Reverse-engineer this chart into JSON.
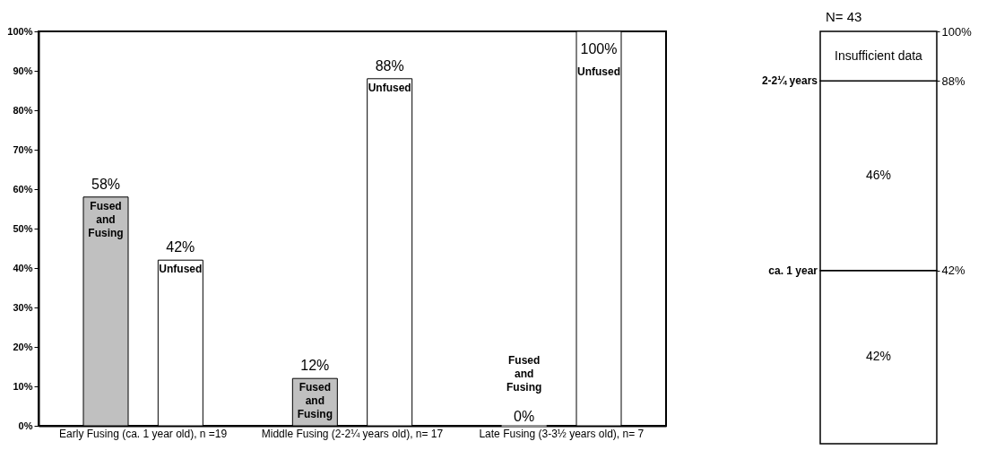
{
  "chart_data": [
    {
      "type": "bar",
      "categories": [
        "Early Fusing (ca. 1 year old), n =19",
        "Middle Fusing (2-2¼ years old), n= 17",
        "Late Fusing (3-3½ years old), n= 7"
      ],
      "series": [
        {
          "name": "Fused and Fusing",
          "color": "#c0c0c0",
          "values": [
            58,
            12,
            0
          ],
          "value_labels": [
            "58%",
            "12%",
            "0%"
          ]
        },
        {
          "name": "Unfused",
          "color": "#ffffff",
          "values": [
            42,
            88,
            100
          ],
          "value_labels": [
            "42%",
            "88%",
            "100%"
          ]
        }
      ],
      "ylim": [
        0,
        100
      ],
      "yticks": [
        {
          "value": 0,
          "label": "0%"
        },
        {
          "value": 10,
          "label": "10%"
        },
        {
          "value": 20,
          "label": "20%"
        },
        {
          "value": 30,
          "label": "30%"
        },
        {
          "value": 40,
          "label": "40%"
        },
        {
          "value": 50,
          "label": "50%"
        },
        {
          "value": 60,
          "label": "60%"
        },
        {
          "value": 70,
          "label": "70%"
        },
        {
          "value": 80,
          "label": "80%"
        },
        {
          "value": 90,
          "label": "90%"
        },
        {
          "value": 100,
          "label": "100%"
        }
      ],
      "grid": false,
      "legend": false
    },
    {
      "type": "bar",
      "stacked": true,
      "categories": [
        null
      ],
      "series": [
        {
          "color": "#ffffff",
          "values": [
            42
          ],
          "value_labels": [
            "42%"
          ]
        },
        {
          "color": "#ffffff",
          "values": [
            46
          ],
          "value_labels": [
            "46%"
          ]
        },
        {
          "color": "#ffffff",
          "values": [
            12
          ],
          "value_labels": [
            "Insufficient data"
          ]
        }
      ],
      "ylim": [
        0,
        100
      ],
      "yticks": [
        {
          "value": 42,
          "label": "42%"
        },
        {
          "value": 88,
          "label": "88%"
        },
        {
          "value": 100,
          "label": "100%"
        }
      ],
      "annotations": [
        "ca. 1 year",
        "2-2¼ years",
        "N= 43"
      ],
      "grid": false,
      "legend": false
    }
  ]
}
